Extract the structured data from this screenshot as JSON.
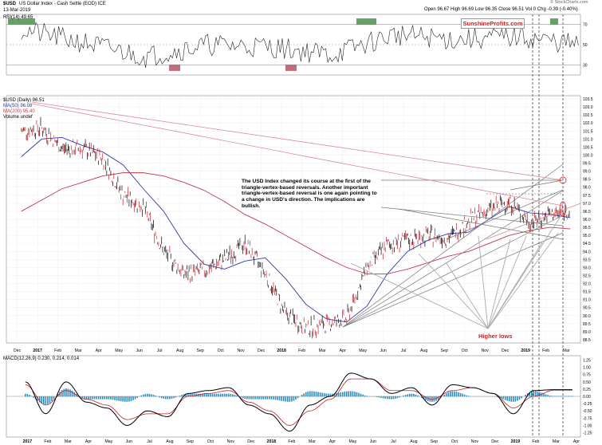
{
  "header": {
    "symbol": "$USD",
    "title": "US Dollar Index - Cash Settle (EOD) ICE",
    "date": "13-Mar-2019",
    "quote": "Open 96.67  High 96.69  Low 96.35  Close 96.51  Vol 0  Chg -0.39 (-0.40%)",
    "credit": "© StockCharts.com"
  },
  "rsi_panel": {
    "label": "RSI(14) 49.65",
    "ticks": [
      "70",
      "50",
      "30"
    ]
  },
  "price_panel": {
    "legend": [
      "$USD (Daily) 96.51",
      "MA(50) 96.08",
      "MA(200) 95.40",
      "Volume undef"
    ],
    "ticks": [
      "103.5",
      "103.0",
      "102.5",
      "102.0",
      "101.5",
      "101.0",
      "100.5",
      "100.0",
      "99.5",
      "99.0",
      "98.5",
      "98.0",
      "97.5",
      "97.0",
      "96.5",
      "96.0",
      "95.5",
      "95.0",
      "94.5",
      "94.0",
      "93.5",
      "93.0",
      "92.5",
      "92.0",
      "91.5",
      "91.0",
      "90.5",
      "90.0",
      "89.5",
      "89.0",
      "88.5"
    ],
    "callout": "The USD Index changed its course at the first of the triangle-vertex-based reversals. Another important triangle-vertex-based reversal is one again pointing to a change in USD's direction. The implications are bullish.",
    "higher_lows": "Higher lows",
    "logo": "SunshineProfits.com"
  },
  "macd_panel": {
    "label": "MACD(12,26,9) 0.230, 0.214, 0.014",
    "ticks": [
      "1.25",
      "1.00",
      "0.75",
      "0.50",
      "0.25",
      "0.00",
      "-0.25",
      "-0.50",
      "-0.75",
      "-1.00",
      "-1.25"
    ]
  },
  "x_axis_mid": [
    "Dec",
    "2017",
    "Feb",
    "Mar",
    "Apr",
    "May",
    "Jun",
    "Jul",
    "Aug",
    "Sep",
    "Oct",
    "Nov",
    "Dec",
    "2018",
    "Feb",
    "Mar",
    "Apr",
    "May",
    "Jun",
    "Jul",
    "Aug",
    "Sep",
    "Oct",
    "Nov",
    "Dec",
    "2019",
    "Feb",
    "Mar"
  ],
  "x_axis_bottom": [
    "2017",
    "Feb",
    "Mar",
    "Apr",
    "May",
    "Jun",
    "Jul",
    "Aug",
    "Sep",
    "Oct",
    "Nov",
    "Dec",
    "2018",
    "Feb",
    "Mar",
    "Apr",
    "May",
    "Jun",
    "Jul",
    "Aug",
    "Sep",
    "Oct",
    "Nov",
    "Dec",
    "2019",
    "Feb",
    "Mar",
    "Apr"
  ],
  "colors": {
    "price": "#000000",
    "ma50": "#2b3aa8",
    "ma200": "#c0394b",
    "trend_red": "#d98a95",
    "trend_gray": "#777777",
    "macd_hist": "#2a8fc0",
    "rsi_fill_high": "#3f8a3f",
    "rsi_fill_low": "#b04a5a",
    "accent": "#cc2222"
  },
  "chart_data": [
    {
      "type": "line",
      "title": "$USD (Daily)",
      "x": [
        "2016-12",
        "2017-01",
        "2017-02",
        "2017-03",
        "2017-04",
        "2017-05",
        "2017-06",
        "2017-07",
        "2017-08",
        "2017-09",
        "2017-10",
        "2017-11",
        "2017-12",
        "2018-01",
        "2018-02",
        "2018-03",
        "2018-04",
        "2018-05",
        "2018-06",
        "2018-07",
        "2018-08",
        "2018-09",
        "2018-10",
        "2018-11",
        "2018-12",
        "2019-01",
        "2019-02",
        "2019-03"
      ],
      "series": [
        {
          "name": "$USD (Daily) 96.51",
          "values": [
            101.5,
            101.7,
            100.4,
            100.4,
            99.8,
            97.5,
            96.8,
            94.0,
            92.6,
            92.8,
            93.5,
            94.5,
            92.6,
            90.1,
            89.2,
            89.5,
            89.8,
            93.0,
            94.4,
            94.7,
            95.0,
            94.8,
            95.9,
            96.6,
            97.1,
            95.8,
            96.3,
            96.5
          ]
        },
        {
          "name": "MA(50) 96.08",
          "values": [
            99.9,
            101.0,
            101.1,
            100.6,
            100.2,
            99.4,
            97.9,
            96.5,
            94.5,
            93.2,
            92.9,
            93.4,
            93.6,
            92.3,
            90.7,
            89.8,
            89.6,
            90.6,
            92.6,
            94.0,
            94.7,
            95.1,
            95.2,
            96.0,
            96.8,
            96.4,
            96.3,
            96.1
          ]
        },
        {
          "name": "MA(200) 95.40",
          "values": [
            96.5,
            97.2,
            97.9,
            98.3,
            98.7,
            98.9,
            98.9,
            98.7,
            98.3,
            97.8,
            97.1,
            96.3,
            95.7,
            95.0,
            94.3,
            93.6,
            93.0,
            92.6,
            92.6,
            92.9,
            93.3,
            93.7,
            94.0,
            94.5,
            95.0,
            95.3,
            95.5,
            95.4
          ]
        }
      ],
      "ylim": [
        88.3,
        103.7
      ]
    },
    {
      "type": "line",
      "title": "RSI(14) 49.65",
      "x": [
        "2016-12",
        "2017-03",
        "2017-06",
        "2017-09",
        "2017-12",
        "2018-03",
        "2018-06",
        "2018-09",
        "2018-12",
        "2019-03"
      ],
      "series": [
        {
          "name": "RSI(14) 49.65",
          "values": [
            65,
            52,
            38,
            50,
            48,
            40,
            60,
            55,
            58,
            49.65
          ]
        }
      ],
      "ylim": [
        20,
        80
      ]
    },
    {
      "type": "line",
      "title": "MACD(12,26,9)",
      "x": [
        "2017-01",
        "2017-02",
        "2017-03",
        "2017-04",
        "2017-05",
        "2017-06",
        "2017-07",
        "2017-08",
        "2017-09",
        "2017-10",
        "2017-11",
        "2017-12",
        "2018-01",
        "2018-02",
        "2018-03",
        "2018-04",
        "2018-05",
        "2018-06",
        "2018-07",
        "2018-08",
        "2018-09",
        "2018-10",
        "2018-11",
        "2018-12",
        "2019-01",
        "2019-02",
        "2019-03",
        "2019-04"
      ],
      "series": [
        {
          "name": "MACD",
          "values": [
            0.5,
            -0.6,
            0.5,
            -0.2,
            -0.4,
            -1.0,
            -0.5,
            -0.7,
            0.1,
            0.2,
            0.3,
            -0.3,
            -0.6,
            -1.2,
            -0.3,
            0.0,
            0.8,
            0.6,
            0.1,
            0.3,
            -0.3,
            0.4,
            0.3,
            0.1,
            -0.6,
            0.2,
            0.23,
            0.23
          ]
        },
        {
          "name": "Signal",
          "values": [
            0.4,
            -0.3,
            0.2,
            -0.1,
            -0.3,
            -0.8,
            -0.6,
            -0.6,
            0.0,
            0.1,
            0.2,
            -0.2,
            -0.5,
            -1.0,
            -0.5,
            -0.1,
            0.6,
            0.6,
            0.2,
            0.2,
            -0.1,
            0.2,
            0.3,
            0.1,
            -0.4,
            0.0,
            0.214,
            0.214
          ]
        }
      ],
      "ylim": [
        -1.4,
        1.4
      ]
    }
  ]
}
